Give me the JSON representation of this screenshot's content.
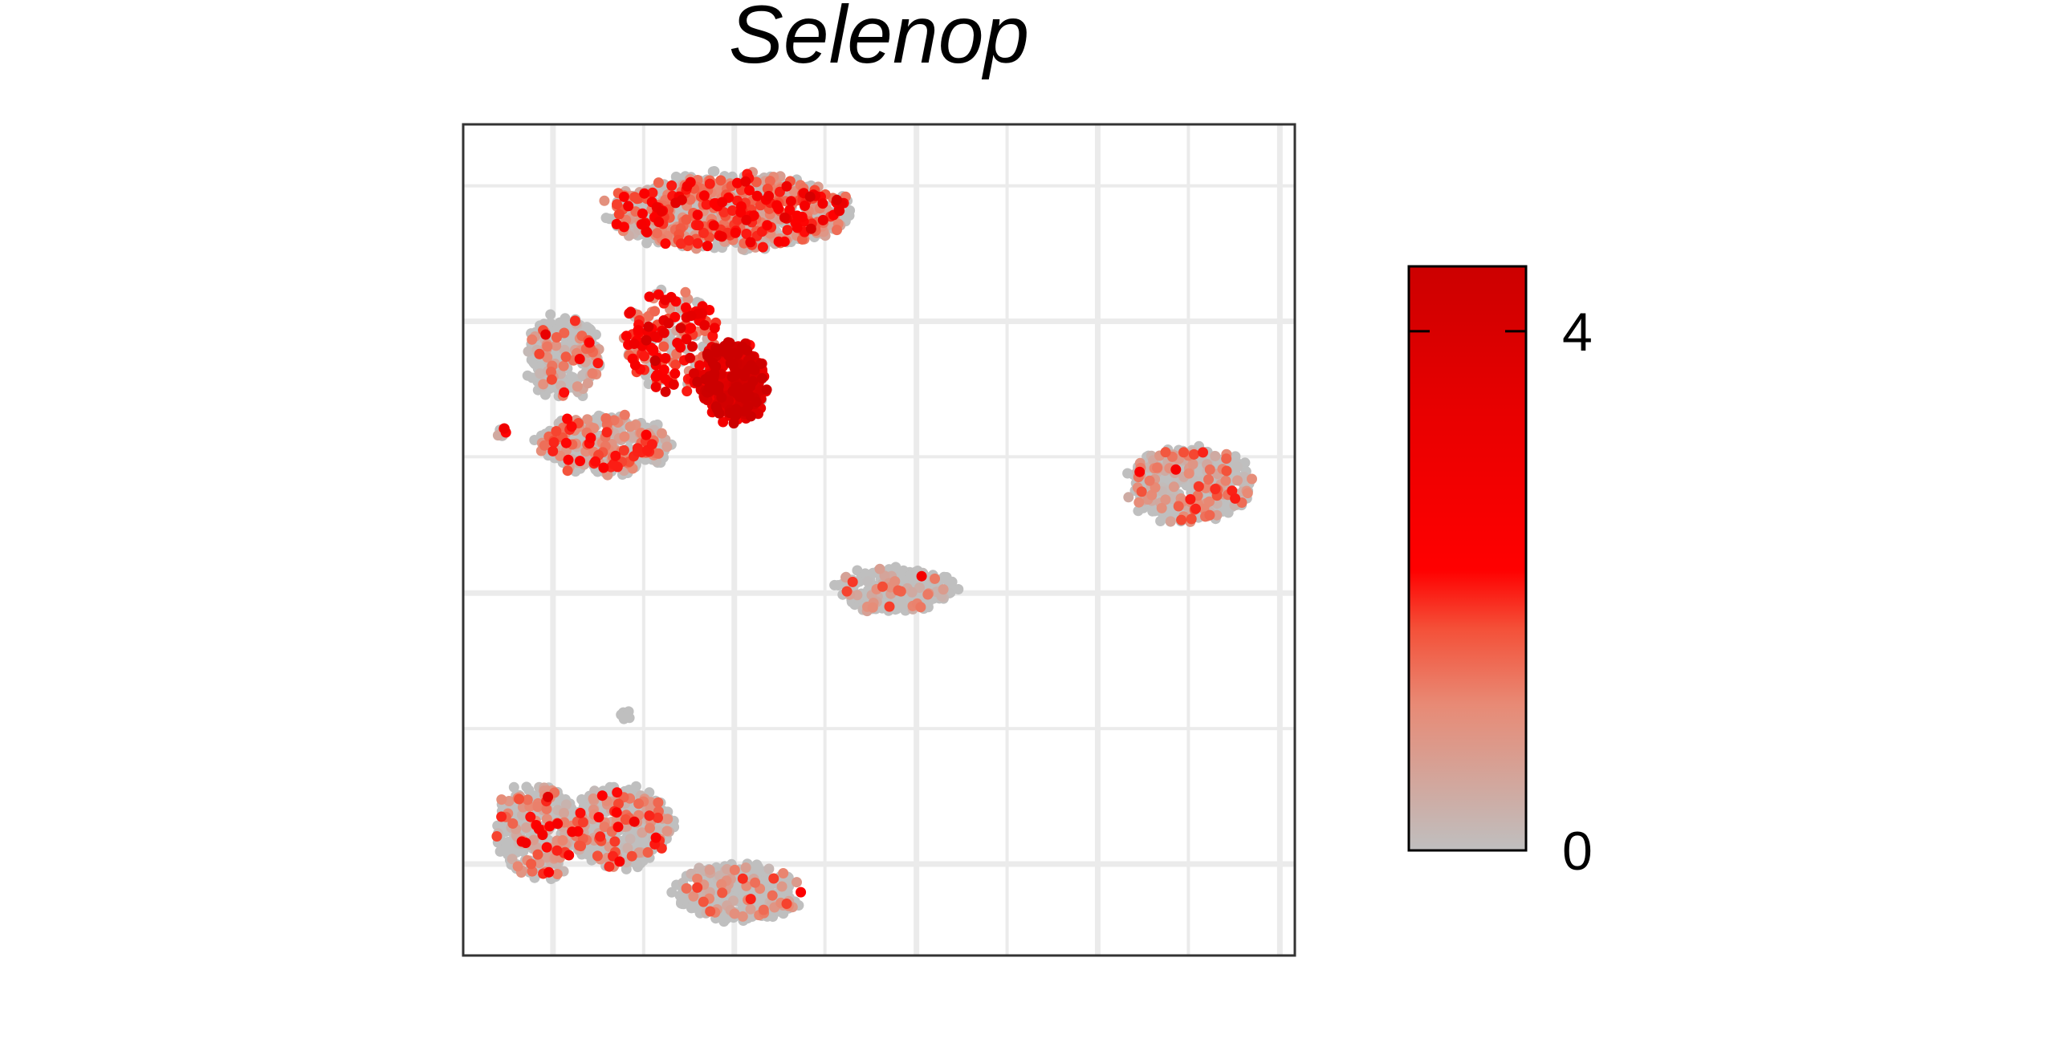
{
  "chart_data": {
    "type": "scatter",
    "title": "Selenop",
    "xlabel": "",
    "ylabel": "",
    "grid": true,
    "axis_ticks_labeled": false,
    "color_scale": {
      "min": 0,
      "max": 4.5,
      "ticks": [
        0,
        4
      ],
      "tick_labels": [
        "0",
        "4"
      ],
      "colors": [
        "#bfbfbf",
        "#e88a75",
        "#f45038",
        "#ff0000",
        "#e80000",
        "#cc0000"
      ],
      "color_stops": [
        0,
        0.25,
        0.38,
        0.48,
        0.75,
        1.0
      ],
      "legend_position": "right"
    },
    "clusters": [
      {
        "label": "upper-left-band",
        "cx": 0.32,
        "cy": 0.895,
        "rx": 0.145,
        "ry": 0.045,
        "count": 900,
        "mean_expression": 1.2
      },
      {
        "label": "left-arc-left",
        "cx": 0.12,
        "cy": 0.72,
        "rx": 0.045,
        "ry": 0.05,
        "count": 250,
        "mean_expression": 0.6
      },
      {
        "label": "left-arc-bottom",
        "cx": 0.17,
        "cy": 0.615,
        "rx": 0.08,
        "ry": 0.035,
        "count": 350,
        "mean_expression": 0.9
      },
      {
        "label": "center-upper",
        "cx": 0.25,
        "cy": 0.74,
        "rx": 0.06,
        "ry": 0.06,
        "count": 200,
        "mean_expression": 2.0
      },
      {
        "label": "dense-hotspot",
        "cx": 0.325,
        "cy": 0.69,
        "rx": 0.04,
        "ry": 0.05,
        "count": 300,
        "mean_expression": 3.8
      },
      {
        "label": "right-cluster",
        "cx": 0.875,
        "cy": 0.565,
        "rx": 0.075,
        "ry": 0.045,
        "count": 450,
        "mean_expression": 0.6
      },
      {
        "label": "center-cluster",
        "cx": 0.52,
        "cy": 0.44,
        "rx": 0.07,
        "ry": 0.027,
        "count": 260,
        "mean_expression": 0.3
      },
      {
        "label": "lower-left-a",
        "cx": 0.09,
        "cy": 0.15,
        "rx": 0.05,
        "ry": 0.06,
        "count": 300,
        "mean_expression": 0.7
      },
      {
        "label": "lower-left-b",
        "cx": 0.19,
        "cy": 0.155,
        "rx": 0.065,
        "ry": 0.05,
        "count": 400,
        "mean_expression": 0.5
      },
      {
        "label": "lower-tail",
        "cx": 0.33,
        "cy": 0.075,
        "rx": 0.075,
        "ry": 0.035,
        "count": 330,
        "mean_expression": 0.3
      },
      {
        "label": "tiny-dot",
        "cx": 0.195,
        "cy": 0.29,
        "rx": 0.006,
        "ry": 0.006,
        "count": 6,
        "mean_expression": 0.1
      },
      {
        "label": "tiny-left",
        "cx": 0.045,
        "cy": 0.63,
        "rx": 0.008,
        "ry": 0.006,
        "count": 8,
        "mean_expression": 1.5
      }
    ]
  }
}
